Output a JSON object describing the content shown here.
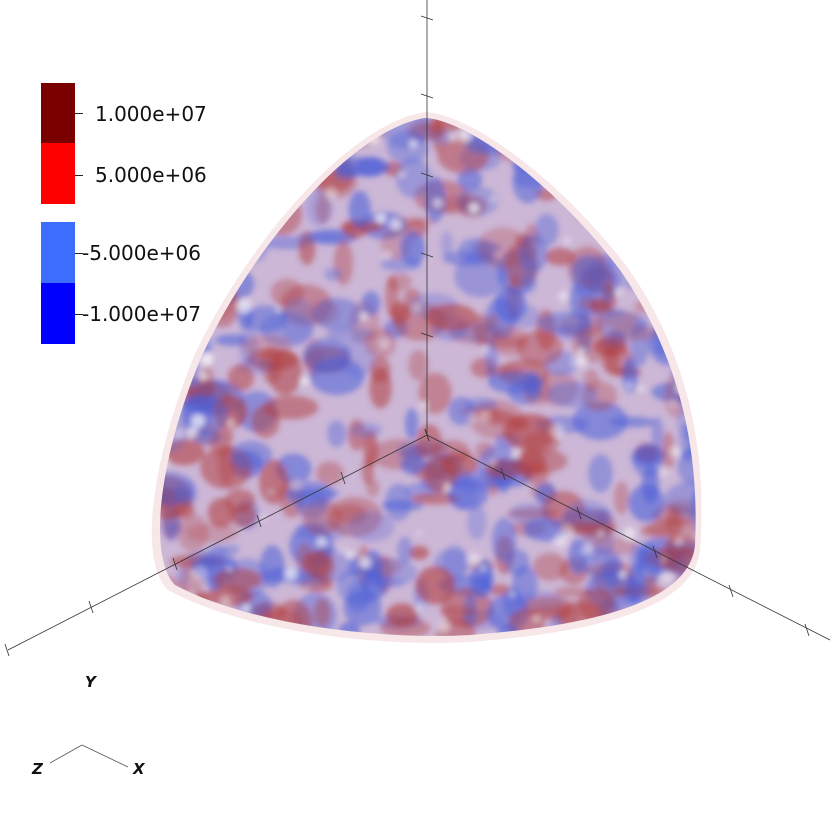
{
  "legend": {
    "entries": [
      {
        "label": "1.000e+07",
        "color": "#7a0000"
      },
      {
        "label": "5.000e+06",
        "color": "#ff0000"
      },
      {
        "label": "-5.000e+06",
        "color": "#3d6dff"
      },
      {
        "label": "-1.000e+07",
        "color": "#0000ff"
      }
    ]
  },
  "orientation_axes": {
    "y_label": "Y",
    "z_label": "Z",
    "x_label": "X"
  },
  "volume": {
    "positive_color": "#b03a3a",
    "negative_color": "#4a5ed8"
  }
}
